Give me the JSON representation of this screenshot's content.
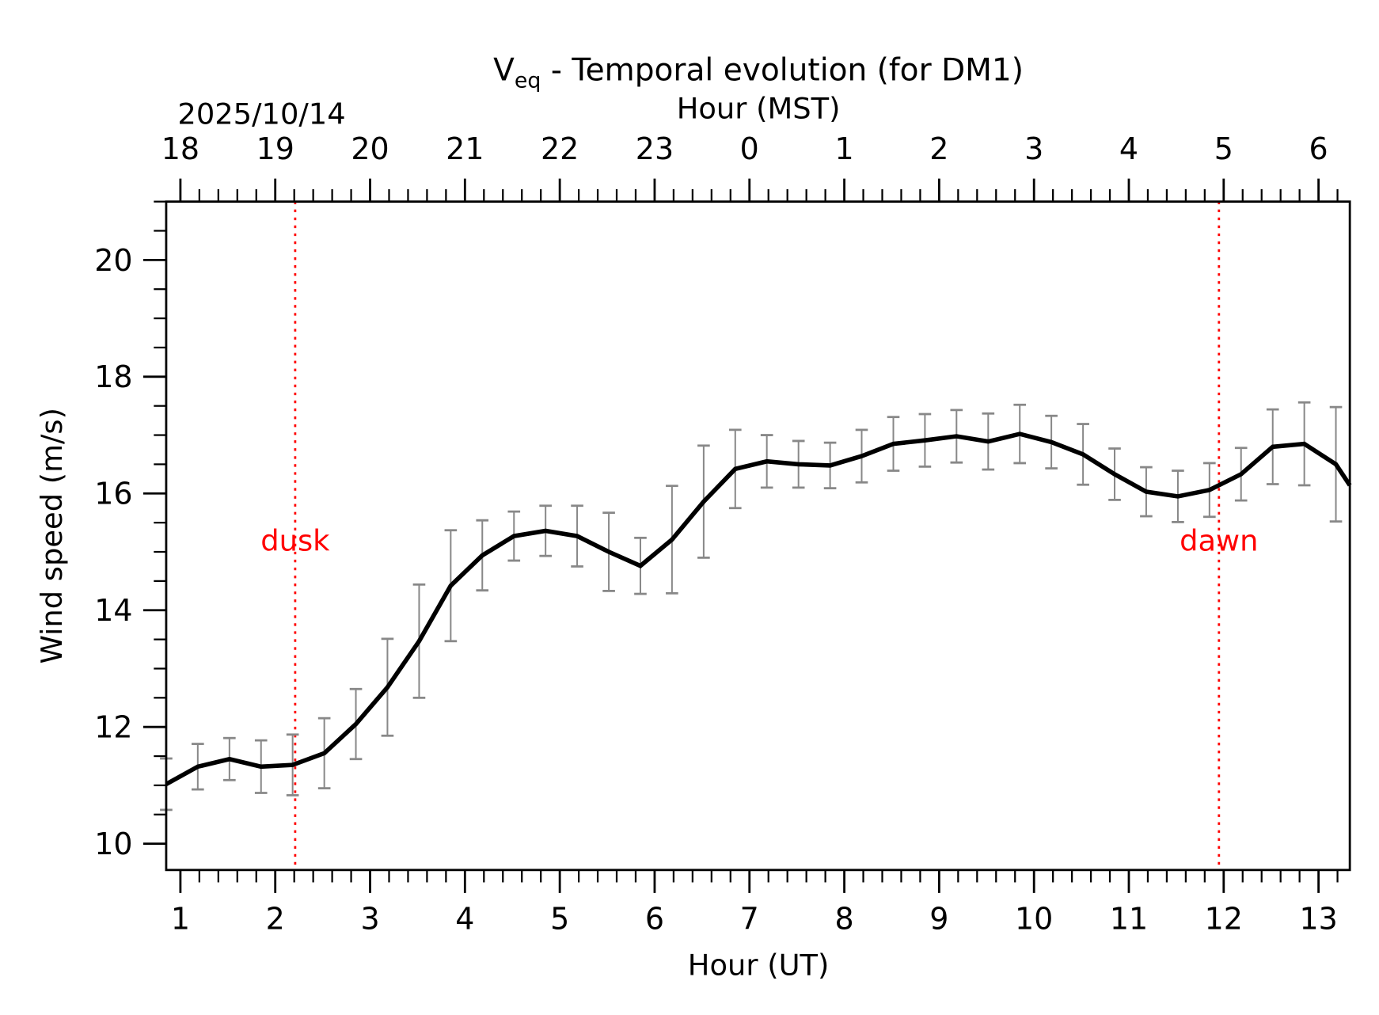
{
  "chart_data": {
    "type": "line",
    "title_main": "V",
    "title_sub": "eq",
    "title_rest": " - Temporal evolution (for DM1)",
    "date_label": "2025/10/14",
    "xlabel": "Hour (UT)",
    "xlabel_top": "Hour (MST)",
    "ylabel": "Wind speed (m/s)",
    "xlim": [
      0.85,
      13.33
    ],
    "ylim": [
      9.55,
      21.0
    ],
    "x_ticks": [
      1,
      2,
      3,
      4,
      5,
      6,
      7,
      8,
      9,
      10,
      11,
      12,
      13
    ],
    "x_tick_labels": [
      "1",
      "2",
      "3",
      "4",
      "5",
      "6",
      "7",
      "8",
      "9",
      "10",
      "11",
      "12",
      "13"
    ],
    "x_top_tick_labels": [
      "18",
      "19",
      "20",
      "21",
      "22",
      "23",
      "0",
      "1",
      "2",
      "3",
      "4",
      "5",
      "6"
    ],
    "x_minor_step": 0.2,
    "y_ticks": [
      10,
      12,
      14,
      16,
      18,
      20
    ],
    "y_tick_labels": [
      "10",
      "12",
      "14",
      "16",
      "18",
      "20"
    ],
    "y_minor_step": 0.5,
    "grid": false,
    "line_color": "#000000",
    "errorbar_color": "#888888",
    "marker_color": "#ff0000",
    "series": [
      {
        "name": "Veq",
        "x": [
          0.85,
          1.183,
          1.517,
          1.85,
          2.183,
          2.517,
          2.85,
          3.183,
          3.517,
          3.85,
          4.183,
          4.517,
          4.85,
          5.183,
          5.517,
          5.85,
          6.183,
          6.517,
          6.85,
          7.183,
          7.517,
          7.85,
          8.183,
          8.517,
          8.85,
          9.183,
          9.517,
          9.85,
          10.183,
          10.517,
          10.85,
          11.183,
          11.517,
          11.85,
          12.183,
          12.517,
          12.85,
          13.183,
          13.33
        ],
        "y": [
          11.02,
          11.32,
          11.45,
          11.32,
          11.35,
          11.55,
          12.05,
          12.68,
          13.47,
          14.42,
          14.94,
          15.27,
          15.36,
          15.27,
          15.0,
          14.76,
          15.21,
          15.86,
          16.42,
          16.55,
          16.5,
          16.48,
          16.64,
          16.85,
          16.91,
          16.98,
          16.89,
          17.02,
          16.88,
          16.67,
          16.33,
          16.03,
          15.95,
          16.06,
          16.33,
          16.8,
          16.85,
          16.5,
          16.14
        ],
        "err": [
          0.44,
          0.39,
          0.36,
          0.45,
          0.52,
          0.6,
          0.6,
          0.83,
          0.97,
          0.95,
          0.6,
          0.42,
          0.43,
          0.52,
          0.67,
          0.48,
          0.92,
          0.96,
          0.67,
          0.45,
          0.4,
          0.39,
          0.45,
          0.46,
          0.45,
          0.45,
          0.48,
          0.5,
          0.45,
          0.52,
          0.44,
          0.42,
          0.44,
          0.46,
          0.45,
          0.64,
          0.71,
          0.98,
          null
        ]
      }
    ],
    "annotations": [
      {
        "label": "dusk",
        "x": 2.21,
        "y_text": 15.2
      },
      {
        "label": "dawn",
        "x": 11.95,
        "y_text": 15.2
      }
    ]
  }
}
